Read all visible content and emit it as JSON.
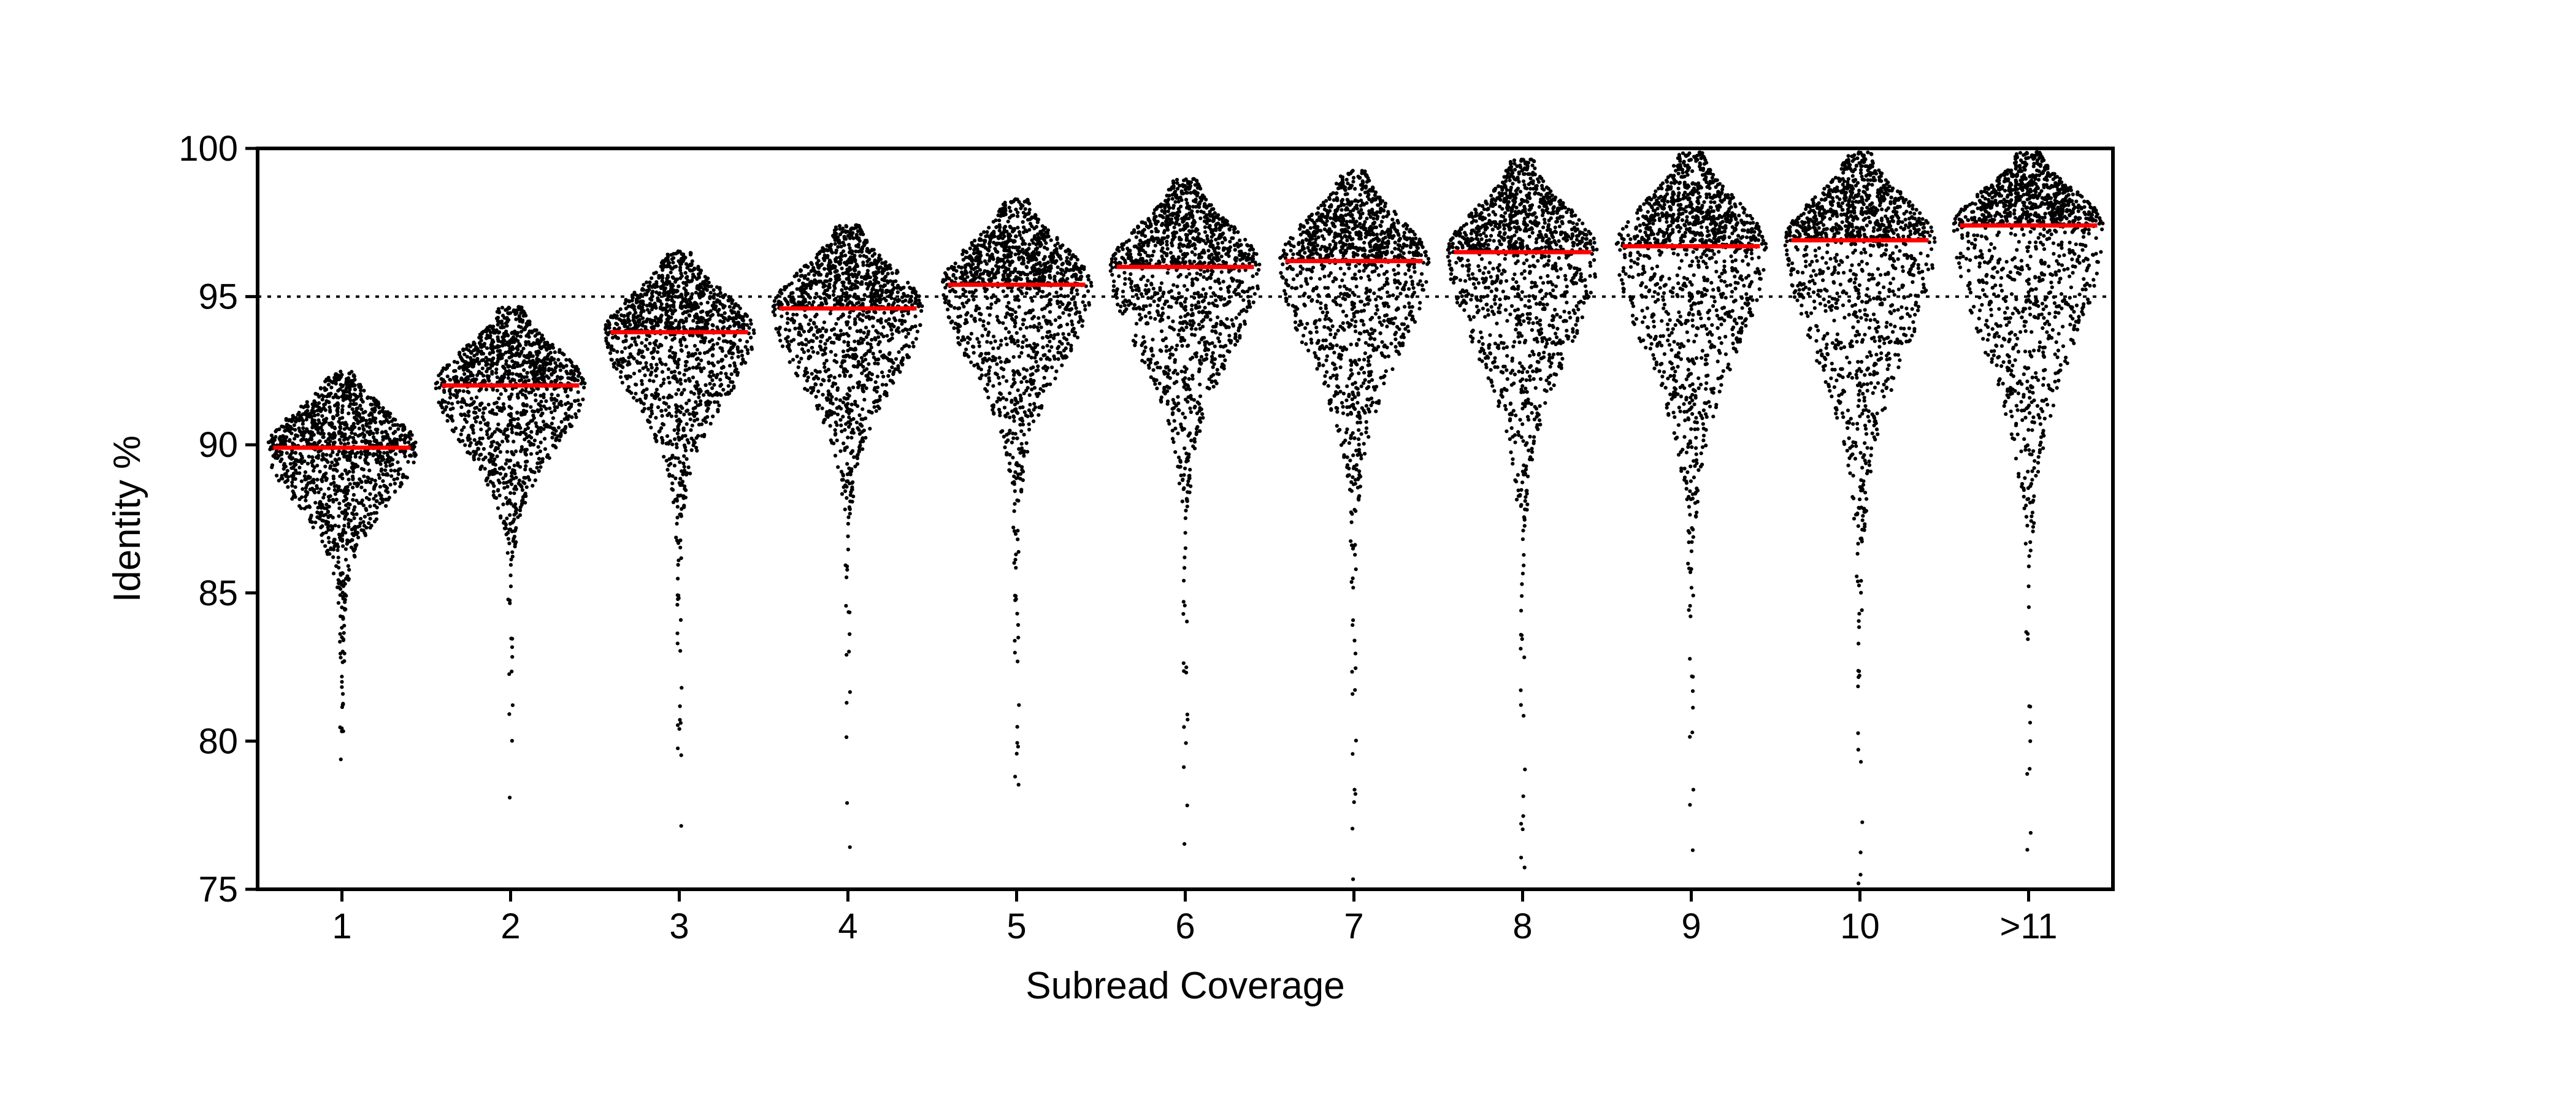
{
  "chart_data": {
    "type": "scatter",
    "subtype": "swarm",
    "xlabel": "Subread Coverage",
    "ylabel": "Identity %",
    "ylim": [
      75,
      100
    ],
    "yticks": [
      75,
      80,
      85,
      90,
      95,
      100
    ],
    "categories": [
      "1",
      "2",
      "3",
      "4",
      "5",
      "6",
      "7",
      "8",
      "9",
      "10",
      ">11"
    ],
    "medians": [
      89.9,
      92.0,
      93.8,
      94.6,
      95.4,
      96.0,
      96.2,
      96.5,
      96.7,
      96.9,
      97.4
    ],
    "reference_line": {
      "y": 95,
      "style": "dotted"
    },
    "grid": false,
    "legend": "none",
    "point_color": "#000000",
    "median_color": "#ff0000"
  }
}
